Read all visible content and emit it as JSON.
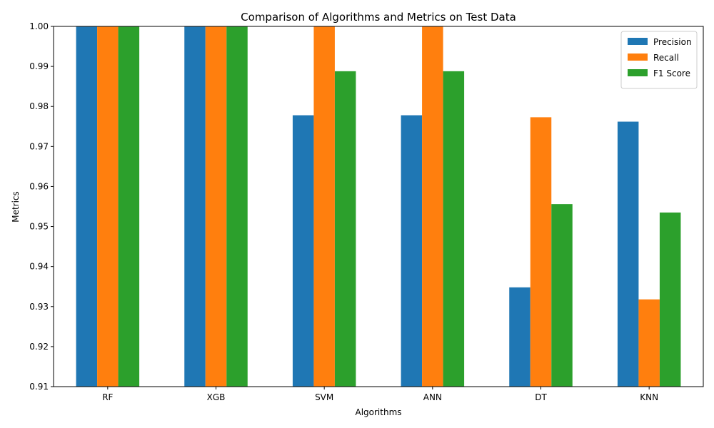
{
  "chart_data": {
    "type": "bar",
    "title": "Comparison of Algorithms and Metrics on Test Data",
    "xlabel": "Algorithms",
    "ylabel": "Metrics",
    "categories": [
      "RF",
      "XGB",
      "SVM",
      "ANN",
      "DT",
      "KNN"
    ],
    "series": [
      {
        "name": "Precision",
        "color": "#1f77b4",
        "values": [
          1.0,
          1.0,
          0.9778,
          0.9778,
          0.9348,
          0.9762
        ]
      },
      {
        "name": "Recall",
        "color": "#ff7f0e",
        "values": [
          1.0,
          1.0,
          1.0,
          1.0,
          0.9773,
          0.9318
        ]
      },
      {
        "name": "F1 Score",
        "color": "#2ca02c",
        "values": [
          1.0,
          1.0,
          0.9888,
          0.9888,
          0.9556,
          0.9535
        ]
      }
    ],
    "ylim": [
      0.91,
      1.0
    ],
    "yticks": [
      "0.91",
      "0.92",
      "0.93",
      "0.94",
      "0.95",
      "0.96",
      "0.97",
      "0.98",
      "0.99",
      "1.00"
    ],
    "legend": "top-right",
    "grid": false
  }
}
